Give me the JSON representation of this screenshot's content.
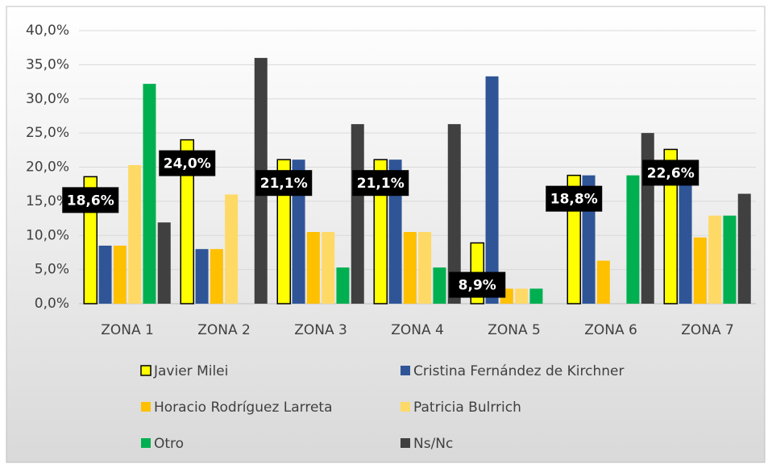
{
  "chart_data": {
    "type": "bar",
    "categories": [
      "ZONA 1",
      "ZONA 2",
      "ZONA 3",
      "ZONA 4",
      "ZONA 5",
      "ZONA 6",
      "ZONA 7"
    ],
    "series": [
      {
        "name": "Javier Milei",
        "color": "#ffff00",
        "values": [
          18.6,
          24.0,
          21.1,
          21.1,
          8.9,
          18.8,
          22.6
        ],
        "value_labels": [
          "18,6%",
          "24,0%",
          "21,1%",
          "21,1%",
          "8,9%",
          "18,8%",
          "22,6%"
        ]
      },
      {
        "name": "Cristina Fernández de Kirchner",
        "color": "#2f5597",
        "values": [
          8.5,
          8.0,
          21.1,
          21.1,
          33.3,
          18.8,
          19.4
        ]
      },
      {
        "name": "Horacio Rodríguez Larreta",
        "color": "#ffc000",
        "values": [
          8.5,
          8.0,
          10.5,
          10.5,
          2.2,
          6.3,
          9.7
        ]
      },
      {
        "name": "Patricia Bulrrich",
        "color": "#ffd966",
        "values": [
          20.3,
          16.0,
          10.5,
          10.5,
          2.2,
          0,
          12.9
        ]
      },
      {
        "name": "Otro",
        "color": "#00b050",
        "values": [
          32.2,
          0,
          5.3,
          5.3,
          2.2,
          18.8,
          12.9
        ]
      },
      {
        "name": "Ns/Nc",
        "color": "#404040",
        "values": [
          11.9,
          36.0,
          26.3,
          26.3,
          0,
          25.0,
          16.1
        ]
      }
    ],
    "ylim": [
      0,
      40
    ],
    "yticks": [
      {
        "value": 0,
        "label": "0,0%"
      },
      {
        "value": 5,
        "label": "5,0%"
      },
      {
        "value": 10,
        "label": "10,0%"
      },
      {
        "value": 15,
        "label": "15,0%"
      },
      {
        "value": 20,
        "label": "20,0%"
      },
      {
        "value": 25,
        "label": "25,0%"
      },
      {
        "value": 30,
        "label": "30,0%"
      },
      {
        "value": 35,
        "label": "35,0%"
      },
      {
        "value": 40,
        "label": "40,0%"
      }
    ],
    "grid": true,
    "legend": "bottom"
  }
}
